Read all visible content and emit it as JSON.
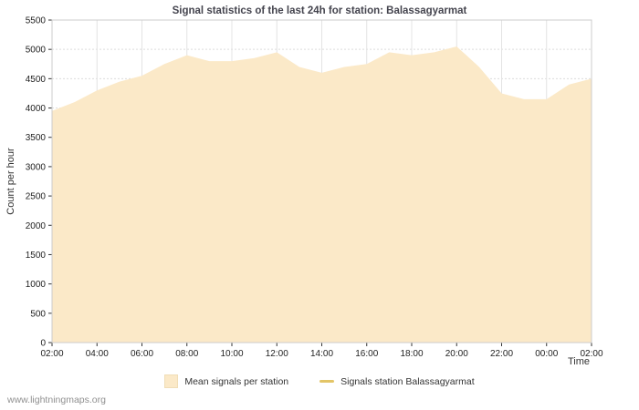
{
  "footer": {
    "link_text": "www.lightningmaps.org"
  },
  "chart_data": {
    "type": "area",
    "title": "Signal statistics of the last 24h for station: Balassagyarmat",
    "xlabel": "Time",
    "ylabel": "Count per hour",
    "ylim": [
      0,
      5500
    ],
    "ytick_step": 500,
    "grid": true,
    "legend_position": "bottom",
    "x_labels": [
      "02:00",
      "04:00",
      "06:00",
      "08:00",
      "10:00",
      "12:00",
      "14:00",
      "16:00",
      "18:00",
      "20:00",
      "22:00",
      "00:00",
      "02:00"
    ],
    "series": [
      {
        "name": "Mean signals per station",
        "style": "area",
        "color": "#fbe9c8",
        "hours": [
          "02:00",
          "03:00",
          "04:00",
          "05:00",
          "06:00",
          "07:00",
          "08:00",
          "09:00",
          "10:00",
          "11:00",
          "12:00",
          "13:00",
          "14:00",
          "15:00",
          "16:00",
          "17:00",
          "18:00",
          "19:00",
          "20:00",
          "21:00",
          "22:00",
          "23:00",
          "00:00",
          "01:00",
          "02:00"
        ],
        "values": [
          3950,
          4100,
          4300,
          4450,
          4550,
          4750,
          4900,
          4800,
          4800,
          4850,
          4950,
          4700,
          4600,
          4700,
          4750,
          4950,
          4900,
          4950,
          5050,
          4700,
          4250,
          4150,
          4150,
          4400,
          4500
        ]
      },
      {
        "name": "Signals station Balassagyarmat",
        "style": "line",
        "color": "#e3c567",
        "values": []
      }
    ],
    "axis_colors": {
      "grid": "#dcdcdc",
      "tick": "#333333",
      "tick_label": "#222222",
      "plot_border": "#cccccc"
    }
  }
}
